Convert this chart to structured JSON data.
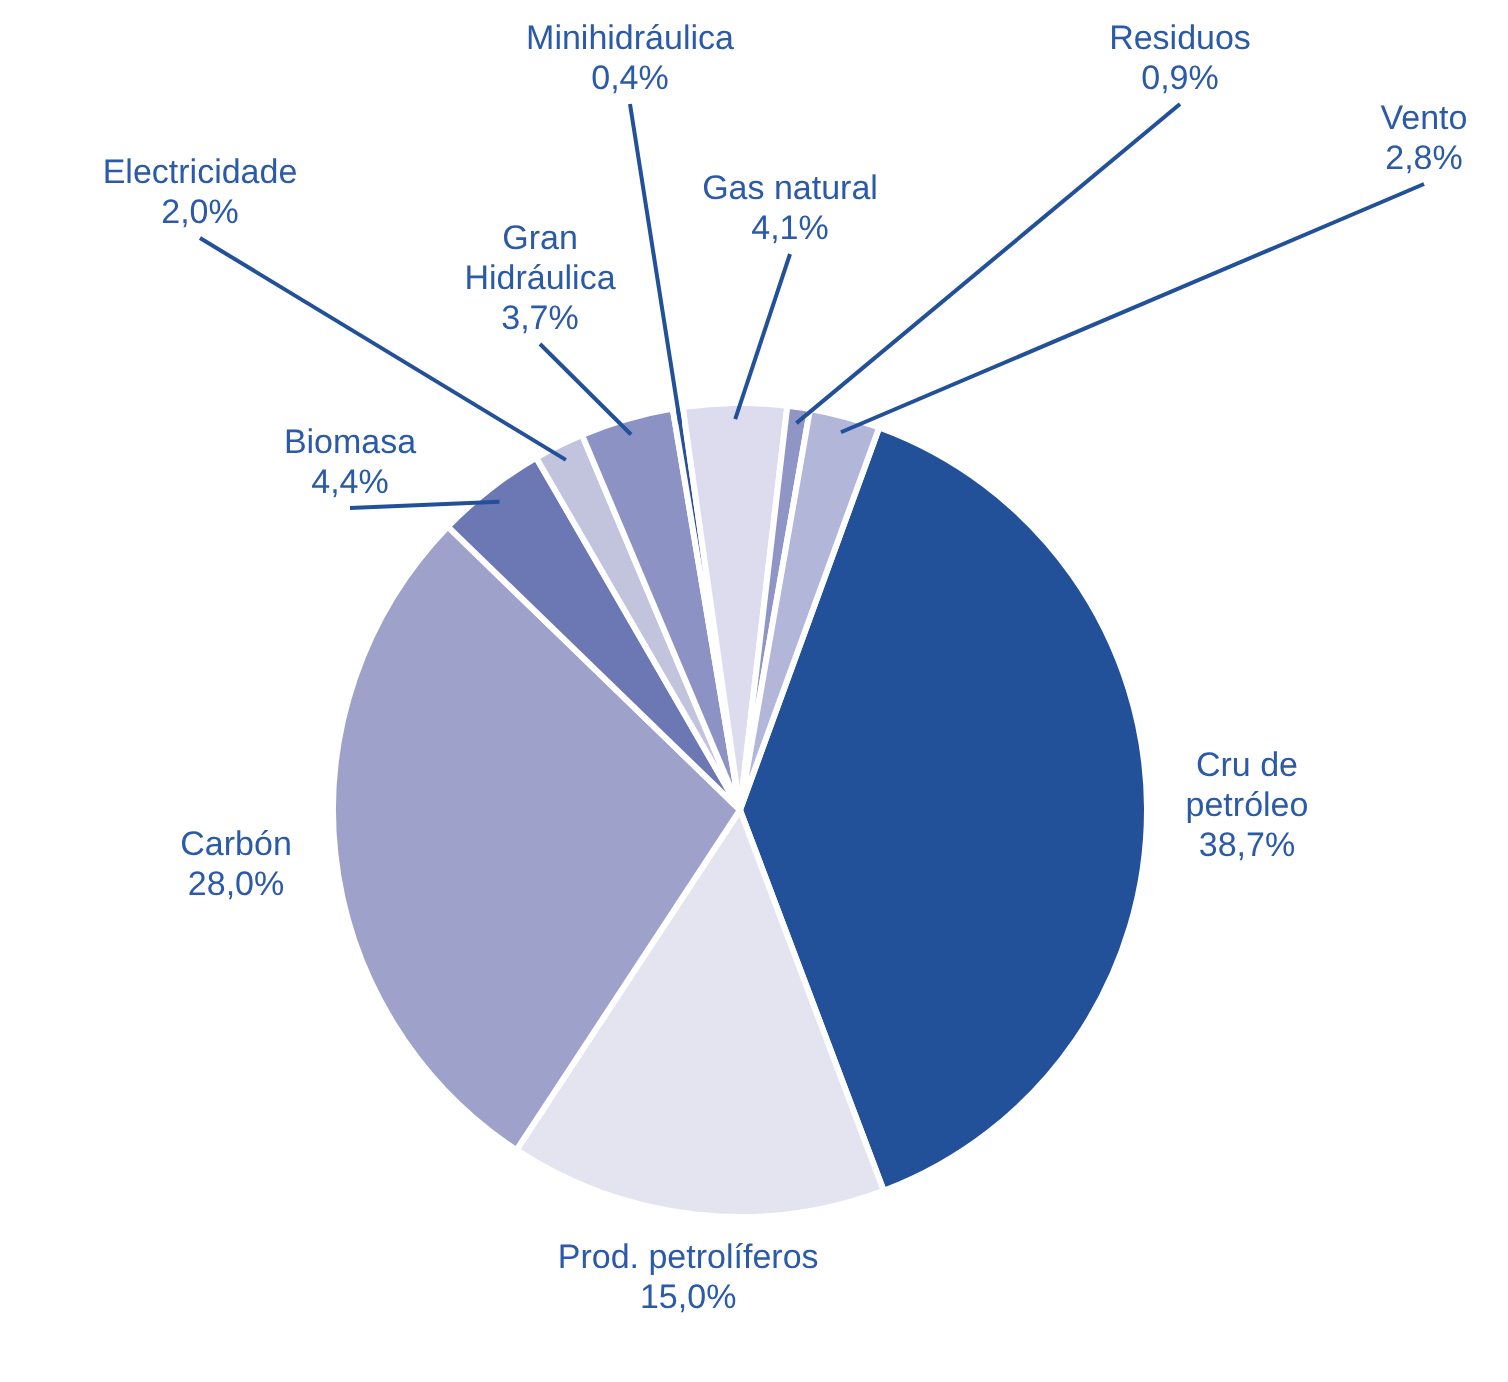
{
  "chart_data": {
    "type": "pie",
    "categories": [
      "Cru de petróleo",
      "Prod. petrolíferos",
      "Carbón",
      "Biomasa",
      "Electricidade",
      "Gran Hidráulica",
      "Minihidráulica",
      "Gas natural",
      "Residuos",
      "Vento"
    ],
    "values": [
      38.7,
      15.0,
      28.0,
      4.4,
      2.0,
      3.7,
      0.4,
      4.1,
      0.9,
      2.8
    ],
    "colors": [
      "#22519a",
      "#e4e4f0",
      "#9ea2cb",
      "#6b78b4",
      "#c2c4de",
      "#8c93c4",
      "#2d4f96",
      "#dcdcee",
      "#8f96c6",
      "#b2b6d8"
    ],
    "value_labels": [
      "38,7%",
      "15,0%",
      "28,0%",
      "4,4%",
      "2,0%",
      "3,7%",
      "0,4%",
      "4,1%",
      "0,9%",
      "2,8%"
    ],
    "legend": false
  }
}
